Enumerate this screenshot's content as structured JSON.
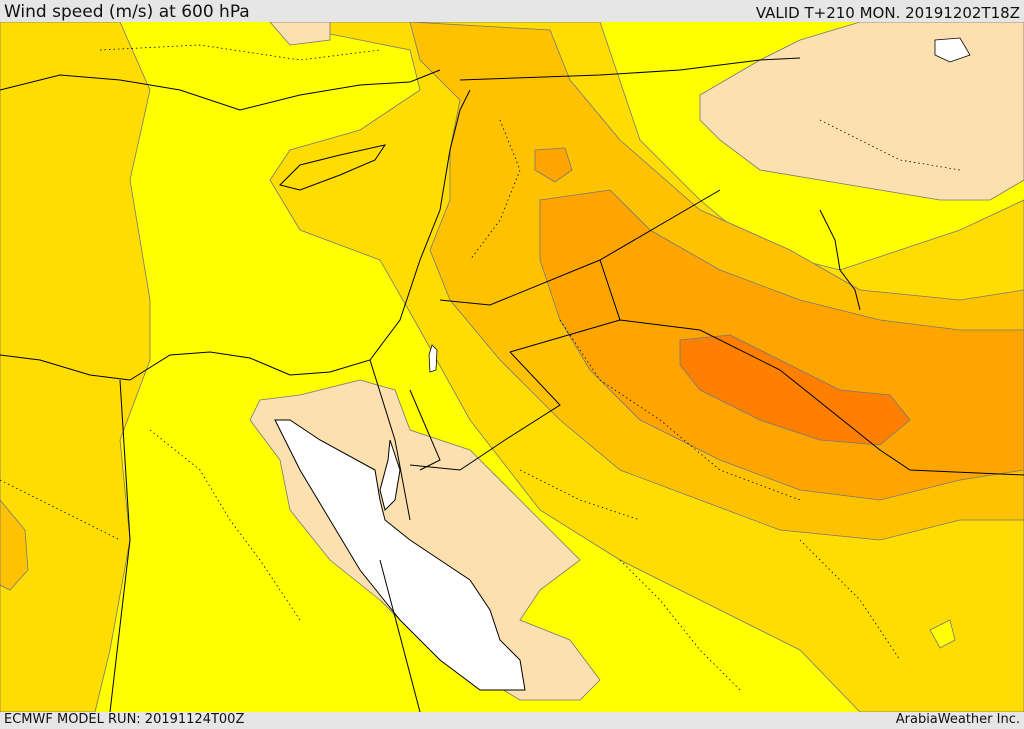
{
  "header": {
    "title": "Wind speed (m/s) at 600 hPa",
    "valid": "VALID T+210 MON. 20191202T18Z"
  },
  "footer": {
    "model_run": "ECMWF MODEL RUN: 20191124T00Z",
    "credit": "ArabiaWeather Inc."
  },
  "colors": {
    "band_lowest": "#fde0b0",
    "band_low": "#ffff00",
    "band_mid": "#ffdd00",
    "band_high1": "#ffc200",
    "band_high2": "#ffa500",
    "band_high3": "#ff8a00",
    "band_max": "#ff7200",
    "sea": "#ffffff",
    "coast": "#000000",
    "contour": "#777777"
  }
}
